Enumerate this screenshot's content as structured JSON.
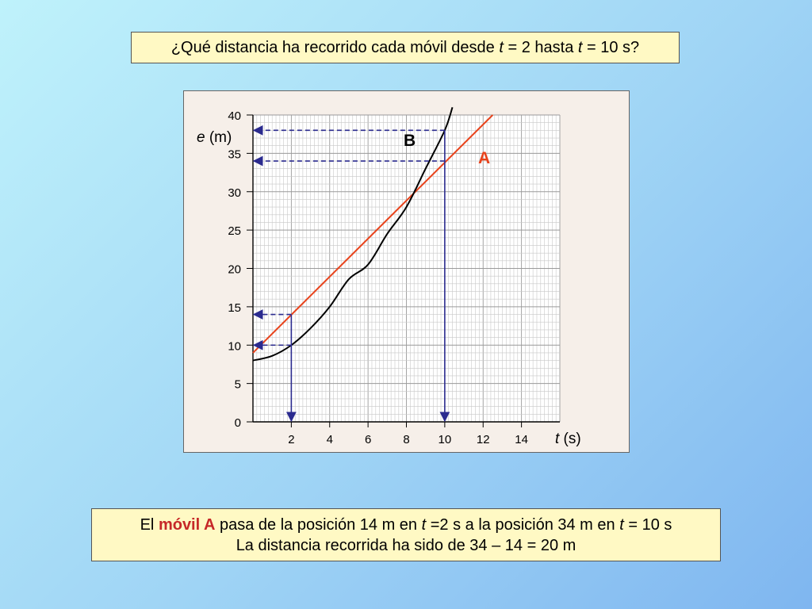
{
  "question": {
    "part1": "¿Qué distancia ha recorrido cada móvil desde ",
    "var1": "t",
    "part2": " = 2 hasta ",
    "var2": "t",
    "part3": " = 10 s?"
  },
  "answer": {
    "line1_prefix": "El ",
    "line1_highlight": "móvil A",
    "line1_mid": " pasa de la posición 14 m en ",
    "line1_var1": "t",
    "line1_mid2": " =2 s a la posición 34 m en ",
    "line1_var2": "t",
    "line1_suffix": " = 10 s",
    "line2": "La distancia recorrida ha sido de 34 – 14 = 20 m"
  },
  "chart_data": {
    "type": "line",
    "xlabel_var": "t",
    "xlabel_unit": " (s)",
    "ylabel_var": "e",
    "ylabel_unit": " (m)",
    "xlim": [
      0,
      16
    ],
    "ylim": [
      0,
      40
    ],
    "x_ticks": [
      2,
      4,
      6,
      8,
      10,
      12,
      14
    ],
    "y_ticks": [
      0,
      5,
      10,
      15,
      20,
      25,
      30,
      35,
      40
    ],
    "grid": true,
    "series": [
      {
        "name": "A",
        "color": "#e8431c",
        "x": [
          0,
          12.5
        ],
        "y": [
          9,
          40
        ]
      },
      {
        "name": "B",
        "color": "#000000",
        "x": [
          0,
          1,
          2,
          3,
          4,
          5,
          6,
          7,
          8,
          9,
          10,
          10.4
        ],
        "y": [
          8,
          8.6,
          10,
          12.2,
          15,
          18.6,
          20.5,
          24.5,
          28,
          33,
          38,
          41
        ]
      }
    ],
    "reference_points": [
      {
        "t": 2,
        "e": 14
      },
      {
        "t": 2,
        "e": 10
      },
      {
        "t": 10,
        "e": 38
      },
      {
        "t": 10,
        "e": 34
      }
    ],
    "reference_color": "#2b2b8f"
  }
}
